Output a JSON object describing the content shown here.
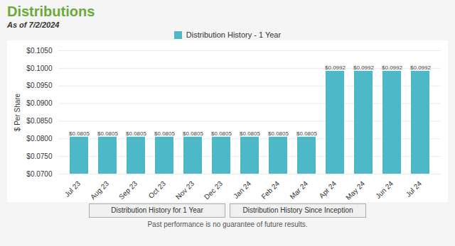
{
  "chart_data": {
    "type": "bar",
    "title": "Distributions",
    "subtitle": "As of 7/2/2024",
    "ylabel": "$ Per Share",
    "categories": [
      "Jul 23",
      "Aug 23",
      "Sep 23",
      "Oct 23",
      "Nov 23",
      "Dec 23",
      "Jan 24",
      "Feb 24",
      "Mar 24",
      "Apr 24",
      "May 24",
      "Jun 24",
      "Jul 24"
    ],
    "series": [
      {
        "name": "Distribution History - 1 Year",
        "color": "#4db8c8",
        "values": [
          0.0805,
          0.0805,
          0.0805,
          0.0805,
          0.0805,
          0.0805,
          0.0805,
          0.0805,
          0.0805,
          0.0992,
          0.0992,
          0.0992,
          0.0992
        ],
        "value_labels": [
          "$0.0805",
          "$0.0805",
          "$0.0805",
          "$0.0805",
          "$0.0805",
          "$0.0805",
          "$0.0805",
          "$0.0805",
          "$0.0805",
          "$0.0992",
          "$0.0992",
          "$0.0992",
          "$0.0992"
        ]
      }
    ],
    "ylim": [
      0.07,
      0.105
    ],
    "yticks": [
      {
        "value": 0.07,
        "label": "$0.0700"
      },
      {
        "value": 0.075,
        "label": "$0.0750"
      },
      {
        "value": 0.08,
        "label": "$0.0800"
      },
      {
        "value": 0.085,
        "label": "$0.0850"
      },
      {
        "value": 0.09,
        "label": "$0.0900"
      },
      {
        "value": 0.095,
        "label": "$0.0950"
      },
      {
        "value": 0.1,
        "label": "$0.1000"
      },
      {
        "value": 0.105,
        "label": "$0.1050"
      }
    ],
    "grid": true,
    "data_labels": true,
    "legend": "top",
    "buttons": [
      "Distribution History for 1 Year",
      "Distribution History Since Inception"
    ],
    "footer": "Past performance is no guarantee of future results."
  }
}
